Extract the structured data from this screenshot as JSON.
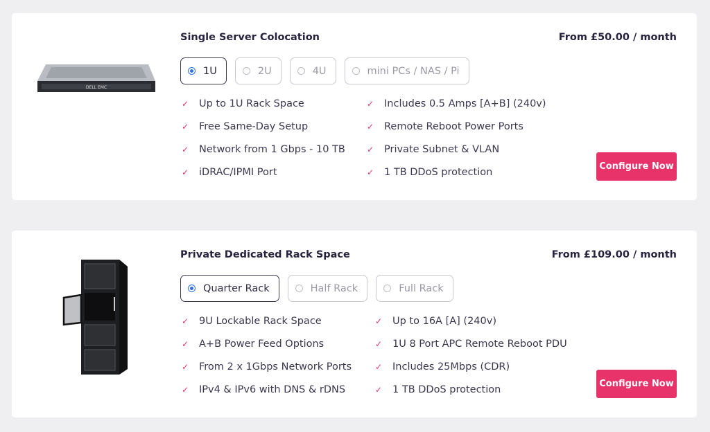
{
  "cards": [
    {
      "title": "Single Server Colocation",
      "price": "From £50.00 / month",
      "image": "rack-server-1u",
      "options": [
        "1U",
        "2U",
        "4U",
        "mini PCs / NAS / Pi"
      ],
      "selected": "1U",
      "features_left": [
        "Up to 1U Rack Space",
        "Free Same-Day Setup",
        "Network from 1 Gbps - 10 TB",
        "iDRAC/IPMI Port"
      ],
      "features_right": [
        "Includes 0.5 Amps [A+B] (240v)",
        "Remote Reboot Power Ports",
        "Private Subnet & VLAN",
        "1 TB DDoS protection"
      ],
      "button": "Configure Now"
    },
    {
      "title": "Private Dedicated Rack Space",
      "price": "From £109.00 / month",
      "image": "rack-cabinet",
      "options": [
        "Quarter Rack",
        "Half Rack",
        "Full Rack"
      ],
      "selected": "Quarter Rack",
      "features_left": [
        "9U Lockable Rack Space",
        "A+B Power Feed Options",
        "From 2 x 1Gbps Network Ports",
        "IPv4 & IPv6 with DNS & rDNS"
      ],
      "features_right": [
        "Up to 16A [A] (240v)",
        "1U 8 Port APC Remote Reboot PDU",
        "Includes 25Mbps (CDR)",
        "1 TB DDoS protection"
      ],
      "button": "Configure Now"
    }
  ],
  "colors": {
    "accent": "#e8336a",
    "radio": "#2f6fe0",
    "background": "#efeff1"
  }
}
